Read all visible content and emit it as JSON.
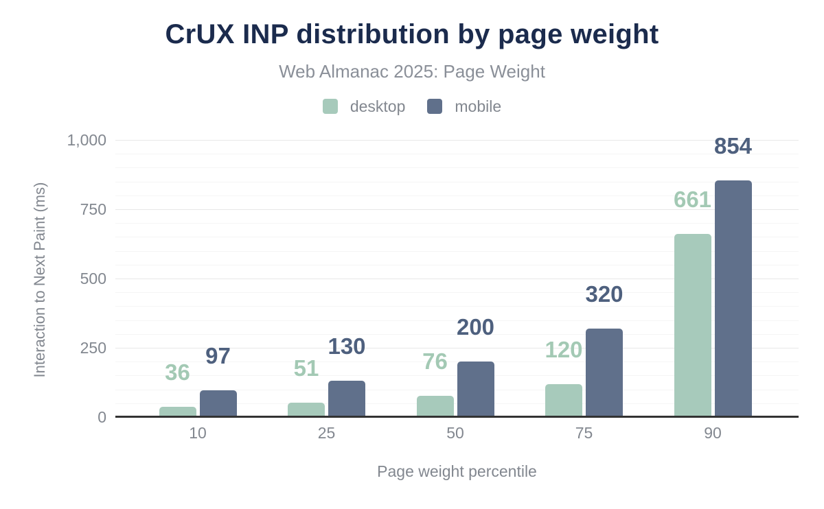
{
  "chart_data": {
    "type": "bar",
    "title": "CrUX INP distribution by page weight",
    "subtitle": "Web Almanac 2025: Page Weight",
    "categories": [
      "10",
      "25",
      "50",
      "75",
      "90"
    ],
    "series": [
      {
        "name": "desktop",
        "color": "#a7cabb",
        "label_color": "#a3c9b4",
        "values": [
          36,
          51,
          76,
          120,
          661
        ]
      },
      {
        "name": "mobile",
        "color": "#60708b",
        "label_color": "#4e607e",
        "values": [
          97,
          130,
          200,
          320,
          854
        ]
      }
    ],
    "xlabel": "Page weight percentile",
    "ylabel": "Interaction to Next Paint (ms)",
    "ylim": [
      0,
      1000
    ],
    "yticks": [
      0,
      250,
      500,
      750,
      1000
    ],
    "ytick_labels": [
      "0",
      "250",
      "500",
      "750",
      "1,000"
    ],
    "minor_grid_step": 50,
    "grid": true,
    "legend_position": "top",
    "data_labels": true
  },
  "colors": {
    "background": "#ffffff",
    "title": "#1b2b4d",
    "subtitle": "#8a8f98",
    "axis_text": "#82878f",
    "axis_line": "#333333",
    "gridline_major": "#e8e8e8",
    "gridline_minor": "#f5f5f5"
  }
}
